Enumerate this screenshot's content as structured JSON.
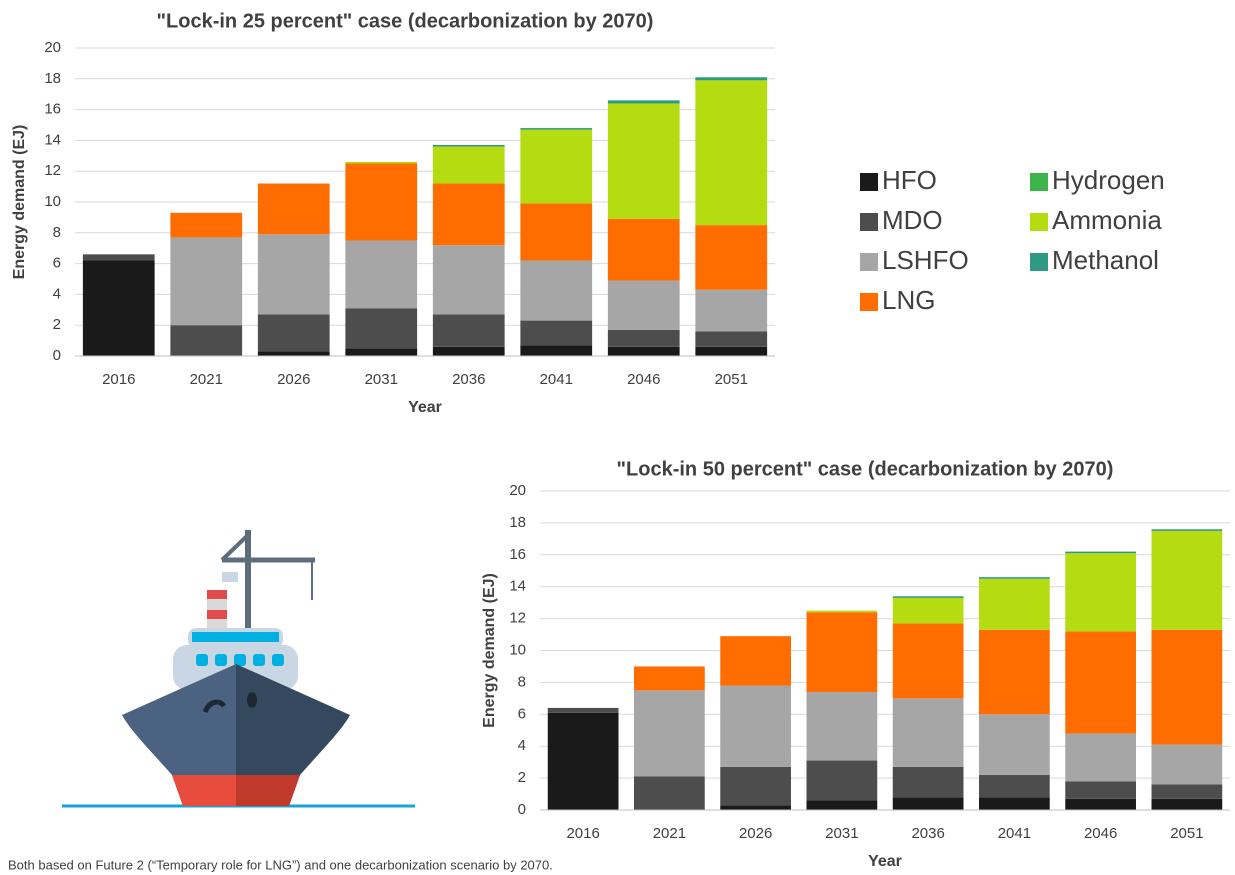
{
  "chart_data": [
    {
      "type": "stacked-bar",
      "title": "\"Lock-in 25 percent\" case (decarbonization by 2070)",
      "x_label": "Year",
      "y_label": "Energy demand (EJ)",
      "categories": [
        "2016",
        "2021",
        "2026",
        "2031",
        "2036",
        "2041",
        "2046",
        "2051"
      ],
      "ylim": [
        0,
        20
      ],
      "yticks": [
        0,
        2,
        4,
        6,
        8,
        10,
        12,
        14,
        16,
        18,
        20
      ],
      "grid": true,
      "series": [
        {
          "name": "HFO",
          "color": "#1a1a1a",
          "values": [
            6.2,
            0,
            0.3,
            0.5,
            0.6,
            0.7,
            0.6,
            0.6
          ]
        },
        {
          "name": "MDO",
          "color": "#4d4d4d",
          "values": [
            0.4,
            2.0,
            2.4,
            2.6,
            2.1,
            1.6,
            1.1,
            1.0
          ]
        },
        {
          "name": "LSHFO",
          "color": "#a6a6a6",
          "values": [
            0,
            5.7,
            5.2,
            4.4,
            4.5,
            3.9,
            3.2,
            2.7
          ]
        },
        {
          "name": "LNG",
          "color": "#ff6d00",
          "values": [
            0,
            1.6,
            3.3,
            5.0,
            4.0,
            3.7,
            4.0,
            4.2
          ]
        },
        {
          "name": "Hydrogen",
          "color": "#3cb44b",
          "values": [
            0,
            0,
            0,
            0,
            0,
            0,
            0,
            0
          ]
        },
        {
          "name": "Ammonia",
          "color": "#b5dc10",
          "values": [
            0,
            0,
            0,
            0.1,
            2.4,
            4.8,
            7.5,
            9.4
          ]
        },
        {
          "name": "Methanol",
          "color": "#2e9a84",
          "values": [
            0,
            0,
            0,
            0,
            0.1,
            0.1,
            0.2,
            0.2
          ]
        }
      ]
    },
    {
      "type": "stacked-bar",
      "title": "\"Lock-in 50 percent\" case (decarbonization by 2070)",
      "x_label": "Year",
      "y_label": "Energy demand (EJ)",
      "categories": [
        "2016",
        "2021",
        "2026",
        "2031",
        "2036",
        "2041",
        "2046",
        "2051"
      ],
      "ylim": [
        0,
        20
      ],
      "yticks": [
        0,
        2,
        4,
        6,
        8,
        10,
        12,
        14,
        16,
        18,
        20
      ],
      "grid": true,
      "series": [
        {
          "name": "HFO",
          "color": "#1a1a1a",
          "values": [
            6.1,
            0,
            0.3,
            0.6,
            0.8,
            0.8,
            0.7,
            0.7
          ]
        },
        {
          "name": "MDO",
          "color": "#4d4d4d",
          "values": [
            0.3,
            2.1,
            2.4,
            2.5,
            1.9,
            1.4,
            1.1,
            0.9
          ]
        },
        {
          "name": "LSHFO",
          "color": "#a6a6a6",
          "values": [
            0,
            5.4,
            5.1,
            4.3,
            4.3,
            3.8,
            3.0,
            2.5
          ]
        },
        {
          "name": "LNG",
          "color": "#ff6d00",
          "values": [
            0,
            1.5,
            3.1,
            5.0,
            4.7,
            5.3,
            6.4,
            7.2
          ]
        },
        {
          "name": "Hydrogen",
          "color": "#3cb44b",
          "values": [
            0,
            0,
            0,
            0,
            0,
            0,
            0,
            0
          ]
        },
        {
          "name": "Ammonia",
          "color": "#b5dc10",
          "values": [
            0,
            0,
            0,
            0.1,
            1.6,
            3.2,
            4.9,
            6.2
          ]
        },
        {
          "name": "Methanol",
          "color": "#2e9a84",
          "values": [
            0,
            0,
            0,
            0,
            0.1,
            0.1,
            0.1,
            0.1
          ]
        }
      ]
    }
  ],
  "footnote": "Both based on Future 2 (“Temporary role for LNG”) and one decarbonization scenario by 2070."
}
